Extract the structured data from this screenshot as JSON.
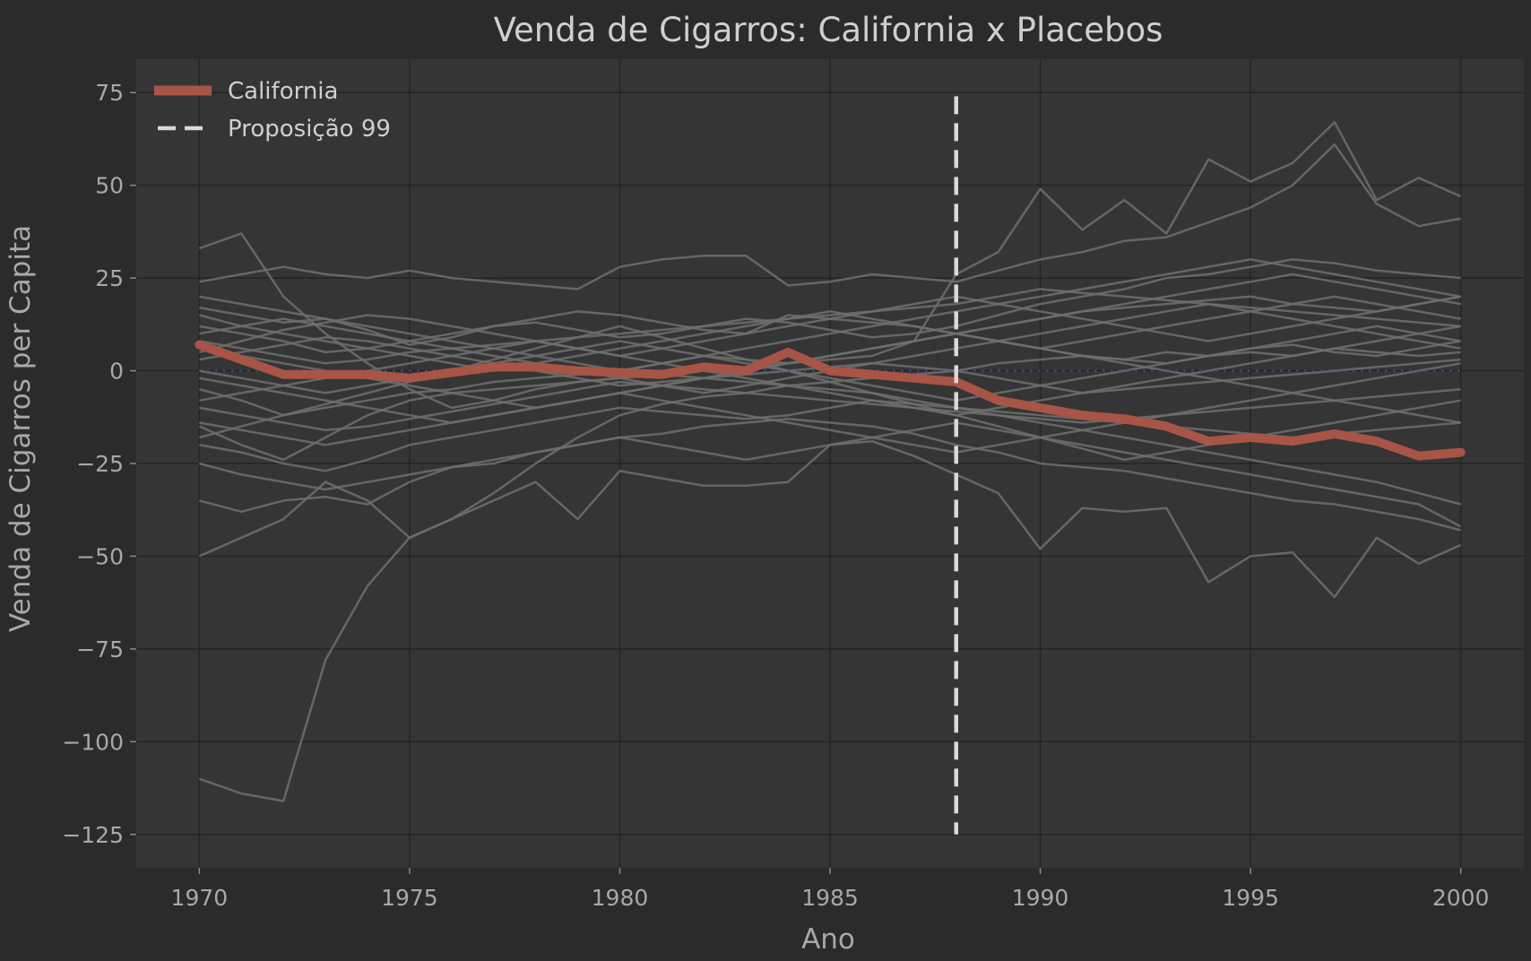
{
  "chart_data": {
    "type": "line",
    "title": "Venda de Cigarros: California x Placebos",
    "xlabel": "Ano",
    "ylabel": "Venda de Cigarros per Capita",
    "xlim": [
      1968.5,
      2001.5
    ],
    "ylim": [
      -134,
      84
    ],
    "xticks": [
      1970,
      1975,
      1980,
      1985,
      1990,
      1995,
      2000
    ],
    "yticks": [
      75,
      50,
      25,
      0,
      -25,
      -50,
      -75,
      -100,
      -125
    ],
    "ytick_labels": [
      "75",
      "50",
      "25",
      "0",
      "−25",
      "−50",
      "−75",
      "−100",
      "−125"
    ],
    "grid": true,
    "legend": {
      "placement": "top-left",
      "entries": [
        {
          "label": "California",
          "style": "solid",
          "color": "#a85446"
        },
        {
          "label": "Proposição 99",
          "style": "dashed",
          "color": "#d9d9d9"
        }
      ]
    },
    "colors": {
      "background": "#2b2b2b",
      "plot_area": "#353535",
      "grid": "#252525",
      "placebo": "#6f6f6f",
      "california": "#a85446",
      "intervention": "#d9d9d9",
      "zero_line": "#4a4ab0"
    },
    "x": [
      1970,
      1971,
      1972,
      1973,
      1974,
      1975,
      1976,
      1977,
      1978,
      1979,
      1980,
      1981,
      1982,
      1983,
      1984,
      1985,
      1986,
      1987,
      1988,
      1989,
      1990,
      1991,
      1992,
      1993,
      1994,
      1995,
      1996,
      1997,
      1998,
      1999,
      2000
    ],
    "intervention": {
      "label": "Proposição 99",
      "x": 1988,
      "y_range": [
        -125,
        74
      ]
    },
    "zero_reference": 0,
    "california": {
      "name": "California",
      "values": [
        7,
        3,
        -1,
        -1,
        -1,
        -2,
        -0.5,
        1,
        1,
        0,
        -0.5,
        -1,
        1,
        0,
        5,
        0,
        -1,
        -2,
        -3,
        -8,
        -10,
        -12,
        -13,
        -15,
        -19,
        -18,
        -19,
        -17,
        -19,
        -23,
        -22
      ]
    },
    "placebos": [
      [
        -110,
        -114,
        -116,
        -78,
        -58,
        -45,
        -40,
        -33,
        -25,
        -18,
        -12,
        -9,
        -7,
        -6,
        -4,
        -3,
        -2,
        -1,
        0,
        2,
        3,
        4,
        3,
        5,
        4,
        5,
        4,
        6,
        5,
        4,
        5
      ],
      [
        33,
        37,
        20,
        10,
        2,
        -5,
        -10,
        -8,
        -5,
        -3,
        -2,
        -1,
        0,
        1,
        2,
        3,
        4,
        8,
        26,
        32,
        49,
        38,
        46,
        37,
        57,
        51,
        56,
        67,
        46,
        52,
        47
      ],
      [
        24,
        26,
        28,
        26,
        25,
        27,
        25,
        24,
        23,
        22,
        28,
        30,
        31,
        31,
        23,
        24,
        26,
        25,
        24,
        27,
        30,
        32,
        35,
        36,
        40,
        44,
        50,
        61,
        45,
        39,
        41
      ],
      [
        -50,
        -45,
        -40,
        -30,
        -35,
        -45,
        -40,
        -35,
        -30,
        -40,
        -27,
        -29,
        -31,
        -31,
        -30,
        -20,
        -19,
        -23,
        -28,
        -33,
        -48,
        -37,
        -38,
        -37,
        -57,
        -50,
        -49,
        -61,
        -45,
        -52,
        -47
      ],
      [
        17,
        15,
        13,
        14,
        11,
        7,
        9,
        12,
        14,
        16,
        15,
        13,
        11,
        10,
        15,
        14,
        13,
        12,
        10,
        8,
        6,
        4,
        3,
        2,
        4,
        6,
        7,
        5,
        4,
        6,
        8
      ],
      [
        -35,
        -38,
        -35,
        -34,
        -36,
        -30,
        -26,
        -25,
        -22,
        -20,
        -18,
        -17,
        -15,
        -14,
        -13,
        -14,
        -15,
        -17,
        -20,
        -22,
        -25,
        -26,
        -27,
        -29,
        -31,
        -33,
        -35,
        -36,
        -38,
        -40,
        -43
      ],
      [
        -15,
        -20,
        -24,
        -18,
        -12,
        -8,
        -6,
        -5,
        -4,
        -3,
        -2,
        -1,
        -2,
        -3,
        -4,
        -5,
        -6,
        -8,
        -10,
        -12,
        -14,
        -16,
        -18,
        -20,
        -22,
        -24,
        -26,
        -28,
        -30,
        -33,
        -36
      ],
      [
        12,
        10,
        8,
        5,
        6,
        8,
        10,
        12,
        13,
        11,
        9,
        10,
        12,
        14,
        13,
        11,
        9,
        10,
        12,
        15,
        18,
        20,
        22,
        25,
        26,
        28,
        30,
        29,
        27,
        26,
        25
      ],
      [
        -5,
        -8,
        -12,
        -10,
        -8,
        -6,
        -5,
        -3,
        -2,
        -1,
        0,
        2,
        4,
        3,
        2,
        4,
        6,
        8,
        10,
        12,
        14,
        16,
        17,
        18,
        19,
        20,
        18,
        17,
        16,
        18,
        20
      ],
      [
        3,
        5,
        7,
        9,
        8,
        6,
        4,
        2,
        0,
        -2,
        -4,
        -3,
        -2,
        -1,
        0,
        1,
        2,
        1,
        0,
        -2,
        -4,
        -6,
        -5,
        -4,
        -3,
        -2,
        -1,
        0,
        1,
        2,
        3
      ],
      [
        -20,
        -22,
        -25,
        -27,
        -24,
        -20,
        -18,
        -16,
        -14,
        -12,
        -10,
        -11,
        -12,
        -13,
        -12,
        -10,
        -8,
        -9,
        -10,
        -11,
        -12,
        -13,
        -14,
        -15,
        -16,
        -17,
        -18,
        -17,
        -16,
        -15,
        -14
      ],
      [
        8,
        6,
        4,
        2,
        3,
        5,
        6,
        7,
        8,
        9,
        10,
        11,
        12,
        13,
        14,
        15,
        16,
        17,
        18,
        20,
        22,
        21,
        20,
        19,
        18,
        17,
        16,
        15,
        14,
        13,
        12
      ],
      [
        -10,
        -12,
        -14,
        -16,
        -15,
        -13,
        -11,
        -9,
        -7,
        -5,
        -3,
        -4,
        -5,
        -6,
        -7,
        -8,
        -9,
        -10,
        -11,
        -12,
        -13,
        -14,
        -13,
        -12,
        -11,
        -10,
        -9,
        -8,
        -7,
        -6,
        -5
      ],
      [
        15,
        12,
        10,
        8,
        6,
        4,
        2,
        0,
        2,
        4,
        6,
        8,
        10,
        12,
        14,
        16,
        14,
        12,
        10,
        8,
        6,
        8,
        10,
        12,
        14,
        16,
        18,
        20,
        18,
        16,
        14
      ],
      [
        -25,
        -28,
        -30,
        -32,
        -30,
        -28,
        -26,
        -24,
        -22,
        -20,
        -18,
        -20,
        -22,
        -24,
        -22,
        -20,
        -18,
        -16,
        -14,
        -16,
        -18,
        -20,
        -22,
        -24,
        -26,
        -28,
        -30,
        -32,
        -34,
        -36,
        -42
      ],
      [
        5,
        8,
        11,
        13,
        15,
        14,
        12,
        10,
        8,
        6,
        4,
        6,
        8,
        10,
        12,
        14,
        16,
        18,
        20,
        18,
        16,
        14,
        12,
        10,
        8,
        10,
        12,
        14,
        16,
        18,
        20
      ],
      [
        -2,
        -4,
        -6,
        -8,
        -10,
        -12,
        -14,
        -12,
        -10,
        -8,
        -6,
        -4,
        -2,
        0,
        2,
        4,
        6,
        8,
        10,
        12,
        14,
        16,
        18,
        20,
        22,
        24,
        26,
        24,
        22,
        20,
        18
      ],
      [
        10,
        12,
        14,
        12,
        10,
        8,
        6,
        4,
        2,
        0,
        -2,
        -4,
        -6,
        -4,
        -2,
        0,
        2,
        4,
        6,
        8,
        10,
        12,
        14,
        16,
        18,
        16,
        14,
        12,
        10,
        8,
        6
      ],
      [
        -8,
        -6,
        -4,
        -2,
        0,
        2,
        4,
        6,
        8,
        6,
        4,
        2,
        0,
        -2,
        -4,
        -6,
        -8,
        -10,
        -12,
        -10,
        -8,
        -6,
        -4,
        -2,
        0,
        2,
        4,
        6,
        8,
        10,
        12
      ],
      [
        20,
        18,
        16,
        14,
        12,
        10,
        8,
        6,
        4,
        2,
        0,
        2,
        4,
        6,
        8,
        10,
        12,
        14,
        16,
        18,
        20,
        22,
        24,
        26,
        28,
        30,
        28,
        26,
        24,
        22,
        20
      ],
      [
        -14,
        -16,
        -18,
        -20,
        -18,
        -16,
        -14,
        -12,
        -10,
        -8,
        -6,
        -8,
        -10,
        -12,
        -14,
        -16,
        -18,
        -20,
        -22,
        -20,
        -18,
        -16,
        -14,
        -12,
        -10,
        -8,
        -6,
        -4,
        -2,
        0,
        2
      ],
      [
        0,
        -2,
        -4,
        -6,
        -4,
        -2,
        0,
        2,
        4,
        6,
        8,
        6,
        4,
        2,
        0,
        -2,
        -4,
        -6,
        -8,
        -6,
        -4,
        -2,
        0,
        2,
        4,
        6,
        8,
        10,
        12,
        10,
        8
      ],
      [
        -18,
        -15,
        -12,
        -9,
        -6,
        -3,
        0,
        3,
        6,
        9,
        12,
        9,
        6,
        3,
        0,
        -3,
        -6,
        -9,
        -12,
        -15,
        -18,
        -21,
        -24,
        -22,
        -20,
        -18,
        -16,
        -14,
        -12,
        -10,
        -8
      ],
      [
        6,
        4,
        2,
        0,
        -2,
        -4,
        -6,
        -8,
        -10,
        -8,
        -6,
        -4,
        -2,
        0,
        2,
        4,
        6,
        8,
        10,
        8,
        6,
        4,
        2,
        0,
        -2,
        -4,
        -6,
        -8,
        -10,
        -12,
        -14
      ]
    ]
  }
}
